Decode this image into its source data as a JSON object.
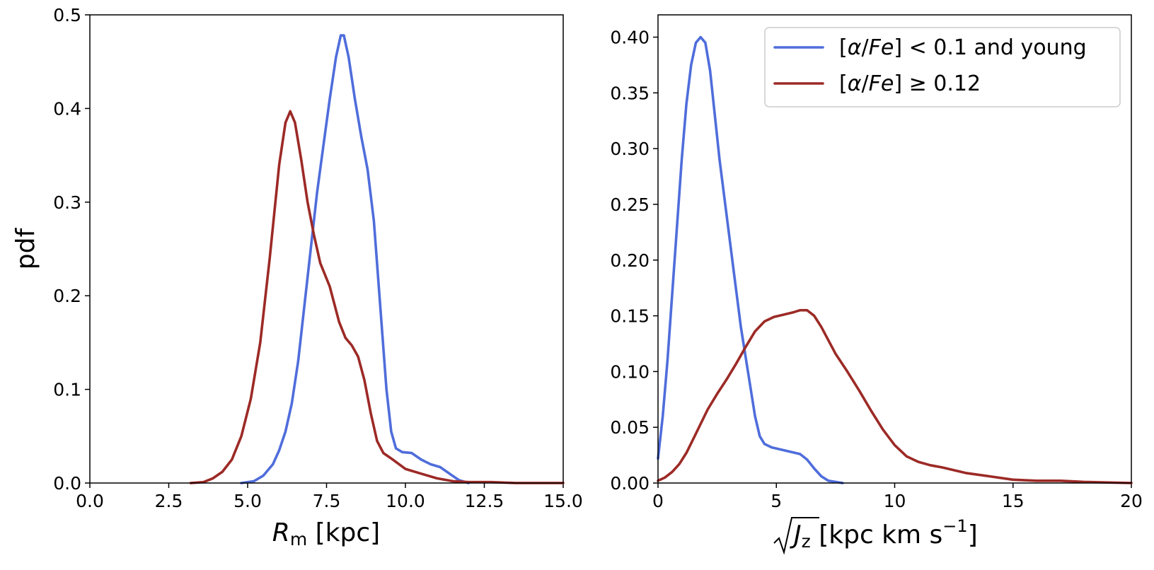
{
  "chart_data": [
    {
      "type": "line",
      "panel": "left",
      "title": "",
      "xlabel_symbol": "R",
      "xlabel_subscript": "m",
      "xlabel_unit": " [kpc]",
      "ylabel": "pdf",
      "xlim": [
        0,
        15
      ],
      "ylim": [
        0,
        0.5
      ],
      "xticks": [
        0,
        2.5,
        5,
        7.5,
        10,
        12.5,
        15
      ],
      "xtick_labels": [
        "0.0",
        "2.5",
        "5.0",
        "7.5",
        "10.0",
        "12.5",
        "15.0"
      ],
      "yticks": [
        0,
        0.1,
        0.2,
        0.3,
        0.4,
        0.5
      ],
      "ytick_labels": [
        "0.0",
        "0.1",
        "0.2",
        "0.3",
        "0.4",
        "0.5"
      ],
      "series": [
        {
          "name": "[α/Fe] < 0.1 and young",
          "color": "#4f6ddb",
          "points": [
            [
              4.8,
              0
            ],
            [
              5.2,
              0.002
            ],
            [
              5.5,
              0.008
            ],
            [
              5.8,
              0.02
            ],
            [
              6.0,
              0.035
            ],
            [
              6.2,
              0.055
            ],
            [
              6.4,
              0.085
            ],
            [
              6.6,
              0.13
            ],
            [
              6.8,
              0.19
            ],
            [
              7.0,
              0.25
            ],
            [
              7.2,
              0.31
            ],
            [
              7.4,
              0.36
            ],
            [
              7.6,
              0.41
            ],
            [
              7.8,
              0.455
            ],
            [
              7.95,
              0.478
            ],
            [
              8.05,
              0.478
            ],
            [
              8.2,
              0.455
            ],
            [
              8.4,
              0.41
            ],
            [
              8.6,
              0.37
            ],
            [
              8.8,
              0.335
            ],
            [
              9.0,
              0.28
            ],
            [
              9.2,
              0.19
            ],
            [
              9.4,
              0.1
            ],
            [
              9.55,
              0.055
            ],
            [
              9.7,
              0.037
            ],
            [
              9.9,
              0.033
            ],
            [
              10.2,
              0.032
            ],
            [
              10.5,
              0.025
            ],
            [
              10.8,
              0.02
            ],
            [
              11.1,
              0.017
            ],
            [
              11.4,
              0.01
            ],
            [
              11.7,
              0.003
            ],
            [
              12.0,
              0
            ]
          ]
        },
        {
          "name": "[α/Fe] ≥ 0.12",
          "color": "#9c2a26",
          "points": [
            [
              3.2,
              0
            ],
            [
              3.6,
              0.001
            ],
            [
              3.9,
              0.005
            ],
            [
              4.2,
              0.012
            ],
            [
              4.5,
              0.025
            ],
            [
              4.8,
              0.05
            ],
            [
              5.1,
              0.09
            ],
            [
              5.4,
              0.15
            ],
            [
              5.7,
              0.24
            ],
            [
              6.0,
              0.34
            ],
            [
              6.2,
              0.385
            ],
            [
              6.35,
              0.397
            ],
            [
              6.5,
              0.385
            ],
            [
              6.7,
              0.345
            ],
            [
              6.9,
              0.3
            ],
            [
              7.1,
              0.265
            ],
            [
              7.3,
              0.235
            ],
            [
              7.6,
              0.21
            ],
            [
              7.9,
              0.172
            ],
            [
              8.1,
              0.155
            ],
            [
              8.3,
              0.147
            ],
            [
              8.5,
              0.135
            ],
            [
              8.7,
              0.11
            ],
            [
              8.9,
              0.075
            ],
            [
              9.1,
              0.045
            ],
            [
              9.3,
              0.032
            ],
            [
              9.6,
              0.025
            ],
            [
              10.0,
              0.015
            ],
            [
              10.5,
              0.01
            ],
            [
              11.0,
              0.005
            ],
            [
              11.5,
              0.002
            ],
            [
              12.0,
              0.001
            ],
            [
              12.7,
              0.001
            ],
            [
              13.5,
              0
            ],
            [
              15.0,
              0
            ]
          ]
        }
      ]
    },
    {
      "type": "line",
      "panel": "right",
      "title": "",
      "xlabel_symbol": "J",
      "xlabel_subscript": "z",
      "xlabel_unit": " [kpc km s",
      "xlabel_exponent": "−1",
      "xlabel_close": "]",
      "ylabel": "",
      "xlim": [
        0,
        20
      ],
      "ylim": [
        0,
        0.42
      ],
      "xticks": [
        0,
        5,
        10,
        15,
        20
      ],
      "xtick_labels": [
        "0",
        "5",
        "10",
        "15",
        "20"
      ],
      "yticks": [
        0,
        0.05,
        0.1,
        0.15,
        0.2,
        0.25,
        0.3,
        0.35,
        0.4
      ],
      "ytick_labels": [
        "0.00",
        "0.05",
        "0.10",
        "0.15",
        "0.20",
        "0.25",
        "0.30",
        "0.35",
        "0.40"
      ],
      "legend": {
        "placement": "top-right",
        "entries": [
          {
            "label_prefix": "[",
            "label_alpha": "α",
            "label_sep": "/",
            "label_fe": "Fe",
            "label_suffix": "] < 0.1 and young",
            "color": "#4f6ddb"
          },
          {
            "label_prefix": "[",
            "label_alpha": "α",
            "label_sep": "/",
            "label_fe": "Fe",
            "label_suffix": "] ≥ 0.12",
            "color": "#9c2a26"
          }
        ]
      },
      "series": [
        {
          "name": "[α/Fe] < 0.1 and young",
          "color": "#4f6ddb",
          "points": [
            [
              0,
              0.022
            ],
            [
              0.2,
              0.06
            ],
            [
              0.4,
              0.11
            ],
            [
              0.6,
              0.17
            ],
            [
              0.8,
              0.23
            ],
            [
              1.0,
              0.29
            ],
            [
              1.2,
              0.34
            ],
            [
              1.4,
              0.375
            ],
            [
              1.6,
              0.395
            ],
            [
              1.8,
              0.4
            ],
            [
              2.0,
              0.395
            ],
            [
              2.2,
              0.37
            ],
            [
              2.4,
              0.33
            ],
            [
              2.6,
              0.29
            ],
            [
              2.9,
              0.24
            ],
            [
              3.2,
              0.19
            ],
            [
              3.5,
              0.14
            ],
            [
              3.8,
              0.1
            ],
            [
              4.1,
              0.06
            ],
            [
              4.3,
              0.042
            ],
            [
              4.5,
              0.035
            ],
            [
              4.8,
              0.032
            ],
            [
              5.2,
              0.03
            ],
            [
              5.6,
              0.028
            ],
            [
              6.0,
              0.026
            ],
            [
              6.3,
              0.021
            ],
            [
              6.6,
              0.013
            ],
            [
              6.9,
              0.006
            ],
            [
              7.2,
              0.002
            ],
            [
              7.5,
              0.001
            ],
            [
              7.8,
              0
            ]
          ]
        },
        {
          "name": "[α/Fe] ≥ 0.12",
          "color": "#9c2a26",
          "points": [
            [
              0,
              0.002
            ],
            [
              0.3,
              0.005
            ],
            [
              0.6,
              0.01
            ],
            [
              0.9,
              0.017
            ],
            [
              1.2,
              0.027
            ],
            [
              1.5,
              0.04
            ],
            [
              1.8,
              0.053
            ],
            [
              2.1,
              0.066
            ],
            [
              2.5,
              0.08
            ],
            [
              2.9,
              0.093
            ],
            [
              3.3,
              0.107
            ],
            [
              3.7,
              0.122
            ],
            [
              4.1,
              0.136
            ],
            [
              4.5,
              0.145
            ],
            [
              4.9,
              0.149
            ],
            [
              5.3,
              0.151
            ],
            [
              5.7,
              0.153
            ],
            [
              6.0,
              0.155
            ],
            [
              6.3,
              0.155
            ],
            [
              6.6,
              0.15
            ],
            [
              6.9,
              0.14
            ],
            [
              7.2,
              0.128
            ],
            [
              7.5,
              0.116
            ],
            [
              8.0,
              0.1
            ],
            [
              8.5,
              0.083
            ],
            [
              9.0,
              0.065
            ],
            [
              9.5,
              0.048
            ],
            [
              10.0,
              0.034
            ],
            [
              10.5,
              0.024
            ],
            [
              11.0,
              0.019
            ],
            [
              11.5,
              0.016
            ],
            [
              12.0,
              0.014
            ],
            [
              13.0,
              0.009
            ],
            [
              14.0,
              0.006
            ],
            [
              15.0,
              0.003
            ],
            [
              16.0,
              0.002
            ],
            [
              17.0,
              0.002
            ],
            [
              18.0,
              0.001
            ],
            [
              20.0,
              0
            ]
          ]
        }
      ]
    }
  ]
}
